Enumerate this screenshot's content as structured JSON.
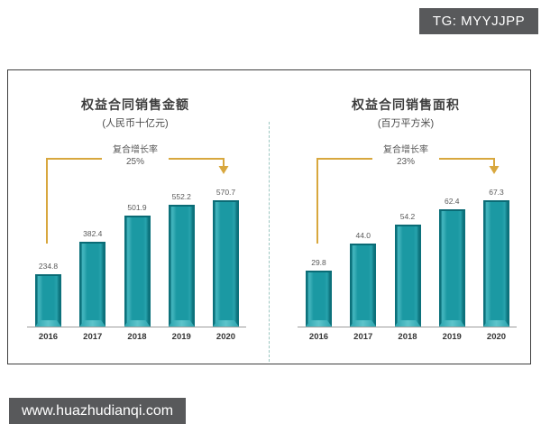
{
  "badge": {
    "text": "TG: MYYJJPP",
    "bg": "#58595b"
  },
  "watermark": {
    "text": "www.huazhudianqi.com",
    "bg": "#58595b"
  },
  "colors": {
    "bar_teal": "#1b99a3",
    "bar_edge_dark": "#0c717b",
    "bar_base_light": "#5ec4cb",
    "accent_gold": "#d8a73e",
    "divider_dashed": "#9cc7c1",
    "axis_gray": "#9b9b9b"
  },
  "chart_data": [
    {
      "type": "bar",
      "title": "权益合同销售金额",
      "subtitle": "(人民币十亿元)",
      "cagr_label": "复合增长率",
      "cagr_value": "25%",
      "categories": [
        "2016",
        "2017",
        "2018",
        "2019",
        "2020"
      ],
      "values": [
        234.8,
        382.4,
        501.9,
        552.2,
        570.7
      ],
      "xlabel": "",
      "ylabel": "",
      "ylim": [
        0,
        600
      ],
      "grid": false,
      "legend": "none",
      "bar_color": "#1b99a3",
      "annotation_arrow_color": "#d8a73e"
    },
    {
      "type": "bar",
      "title": "权益合同销售面积",
      "subtitle": "(百万平方米)",
      "cagr_label": "复合增长率",
      "cagr_value": "23%",
      "categories": [
        "2016",
        "2017",
        "2018",
        "2019",
        "2020"
      ],
      "values": [
        29.8,
        44.0,
        54.2,
        62.4,
        67.3
      ],
      "xlabel": "",
      "ylabel": "",
      "ylim": [
        0,
        70
      ],
      "grid": false,
      "legend": "none",
      "bar_color": "#1b99a3",
      "annotation_arrow_color": "#d8a73e"
    }
  ]
}
